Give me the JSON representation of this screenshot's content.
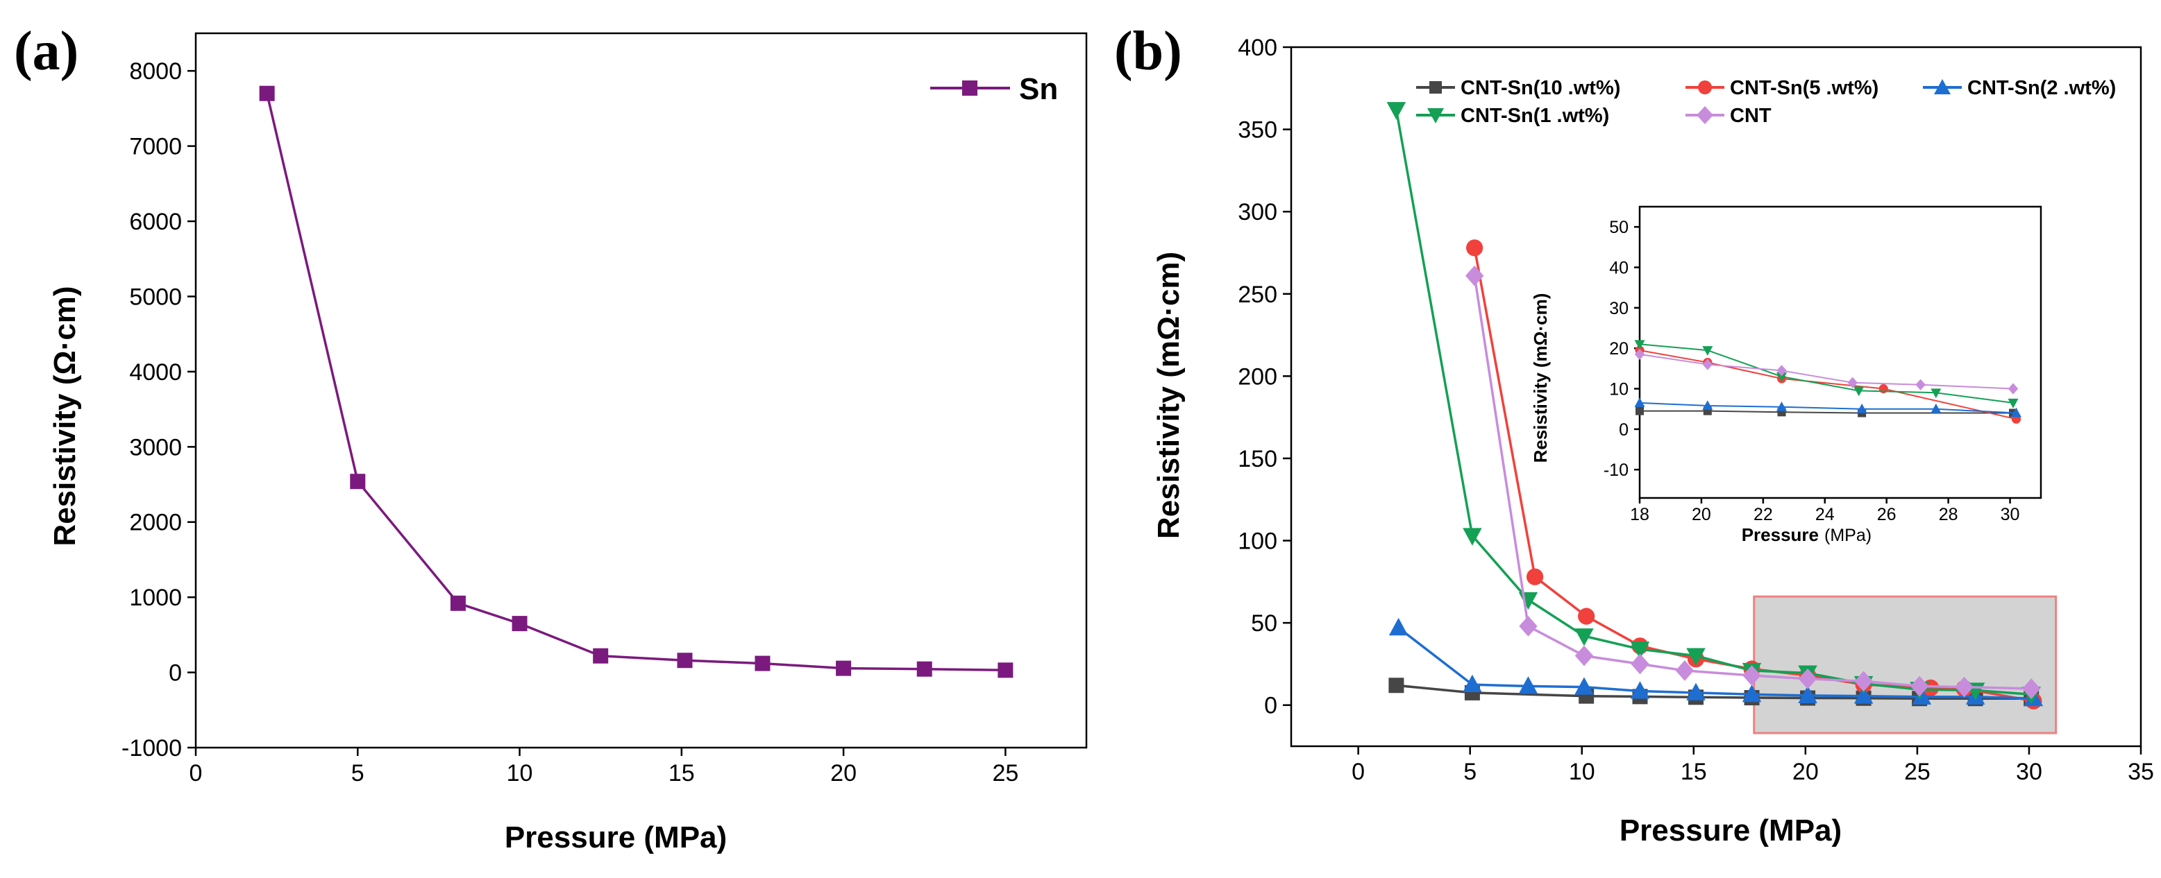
{
  "chart_data": [
    {
      "panel": "(a)",
      "type": "line",
      "xlabel": "Pressure (MPa)",
      "ylabel": "Resistivity (Ω·cm)",
      "xlim": [
        0,
        27.5
      ],
      "ylim": [
        -1000,
        8500
      ],
      "xticks": [
        0,
        5,
        10,
        15,
        20,
        25
      ],
      "yticks": [
        -1000,
        0,
        1000,
        2000,
        3000,
        4000,
        5000,
        6000,
        7000,
        8000
      ],
      "legend_position": "top-right",
      "series": [
        {
          "name": "Sn",
          "color": "#7b1a7e",
          "marker": "square",
          "x": [
            2.2,
            5.0,
            8.1,
            10.0,
            12.5,
            15.1,
            17.5,
            20.0,
            22.5,
            25.0
          ],
          "y": [
            7700,
            2540,
            920,
            650,
            220,
            160,
            120,
            55,
            45,
            30
          ]
        }
      ]
    },
    {
      "panel": "(b)",
      "type": "line",
      "xlabel": "Pressure (MPa)",
      "ylabel": "Resistivity (mΩ·cm)",
      "xlim": [
        -3,
        35
      ],
      "ylim": [
        -25,
        400
      ],
      "xticks": [
        0,
        5,
        10,
        15,
        20,
        25,
        30,
        35
      ],
      "yticks": [
        0,
        50,
        100,
        150,
        200,
        250,
        300,
        350,
        400
      ],
      "legend_position": "top",
      "highlight_region": {
        "x": [
          17.7,
          31.2
        ],
        "y": [
          -17,
          66
        ],
        "fill": "#d3d3d3",
        "stroke": "#f08080"
      },
      "series": [
        {
          "name": "CNT-Sn(10 .wt%)",
          "color": "#464646",
          "marker": "square",
          "x": [
            1.7,
            5.1,
            10.2,
            12.6,
            15.1,
            17.6,
            20.1,
            22.6,
            25.1,
            27.6,
            30.1
          ],
          "y": [
            12.0,
            7.5,
            5.5,
            5.2,
            4.8,
            4.5,
            4.3,
            4.2,
            4.0,
            4.0,
            4.0
          ]
        },
        {
          "name": "CNT-Sn(5 .wt%)",
          "color": "#f0413c",
          "marker": "circle",
          "x": [
            5.2,
            7.9,
            10.2,
            12.6,
            15.1,
            17.6,
            20.1,
            22.6,
            25.6,
            27.1,
            30.2
          ],
          "y": [
            278,
            78,
            54,
            36,
            28,
            22,
            18,
            12.5,
            10.5,
            10.0,
            2.5
          ]
        },
        {
          "name": "CNT-Sn(2 .wt%)",
          "color": "#1e6ed2",
          "marker": "triangle-up",
          "x": [
            1.8,
            5.1,
            7.6,
            10.1,
            12.6,
            15.1,
            17.6,
            20.1,
            22.6,
            25.2,
            27.6,
            30.2
          ],
          "y": [
            47,
            12.5,
            11.5,
            11.0,
            8.5,
            7.5,
            6.5,
            5.8,
            5.5,
            5.0,
            5.0,
            4.0
          ]
        },
        {
          "name": "CNT-Sn(1 .wt%)",
          "color": "#14a055",
          "marker": "triangle-down",
          "x": [
            1.7,
            5.1,
            7.6,
            10.1,
            12.6,
            15.1,
            17.6,
            20.1,
            22.6,
            25.1,
            27.6,
            30.1
          ],
          "y": [
            362,
            103,
            64,
            42,
            34,
            30,
            21,
            19.5,
            13,
            9.5,
            9,
            6.5
          ]
        },
        {
          "name": "CNT",
          "color": "#c88cdc",
          "marker": "diamond",
          "x": [
            5.2,
            7.6,
            10.1,
            12.6,
            14.6,
            17.6,
            20.1,
            22.6,
            25.1,
            27.1,
            30.1
          ],
          "y": [
            261,
            48,
            30,
            25,
            21,
            18,
            16,
            14.5,
            11.5,
            11.0,
            10.0
          ]
        }
      ]
    },
    {
      "panel": "(b) inset",
      "type": "line",
      "xlabel": "Pressure",
      "xlabel_unit": "(MPa)",
      "ylabel": "Resistivity (mΩ·cm)",
      "xlim": [
        18,
        31
      ],
      "ylim": [
        -17,
        55
      ],
      "xticks": [
        18,
        20,
        22,
        24,
        26,
        28,
        30
      ],
      "yticks": [
        -10,
        0,
        10,
        20,
        30,
        40,
        50
      ],
      "series": [
        {
          "name": "CNT-Sn(10 .wt%)",
          "color": "#464646",
          "marker": "square",
          "x": [
            18.0,
            20.2,
            22.6,
            25.2,
            30.1
          ],
          "y": [
            4.5,
            4.5,
            4.2,
            4.0,
            4.0
          ]
        },
        {
          "name": "CNT-Sn(5 .wt%)",
          "color": "#f0413c",
          "marker": "circle",
          "x": [
            18.0,
            20.2,
            22.6,
            25.9,
            30.2
          ],
          "y": [
            19.5,
            16.5,
            12.5,
            10.0,
            2.5
          ]
        },
        {
          "name": "CNT-Sn(2 .wt%)",
          "color": "#1e6ed2",
          "marker": "triangle-up",
          "x": [
            18.0,
            20.2,
            22.6,
            25.2,
            27.6,
            30.2
          ],
          "y": [
            6.5,
            5.8,
            5.5,
            5.0,
            5.0,
            4.0
          ]
        },
        {
          "name": "CNT-Sn(1 .wt%)",
          "color": "#14a055",
          "marker": "triangle-down",
          "x": [
            18.0,
            20.2,
            22.6,
            25.1,
            27.6,
            30.1
          ],
          "y": [
            21,
            19.5,
            13.0,
            9.5,
            9.0,
            6.5
          ]
        },
        {
          "name": "CNT",
          "color": "#c88cdc",
          "marker": "diamond",
          "x": [
            18.0,
            20.2,
            22.6,
            24.9,
            27.1,
            30.1
          ],
          "y": [
            18.5,
            16.0,
            14.5,
            11.5,
            11.0,
            10.0
          ]
        }
      ]
    }
  ]
}
